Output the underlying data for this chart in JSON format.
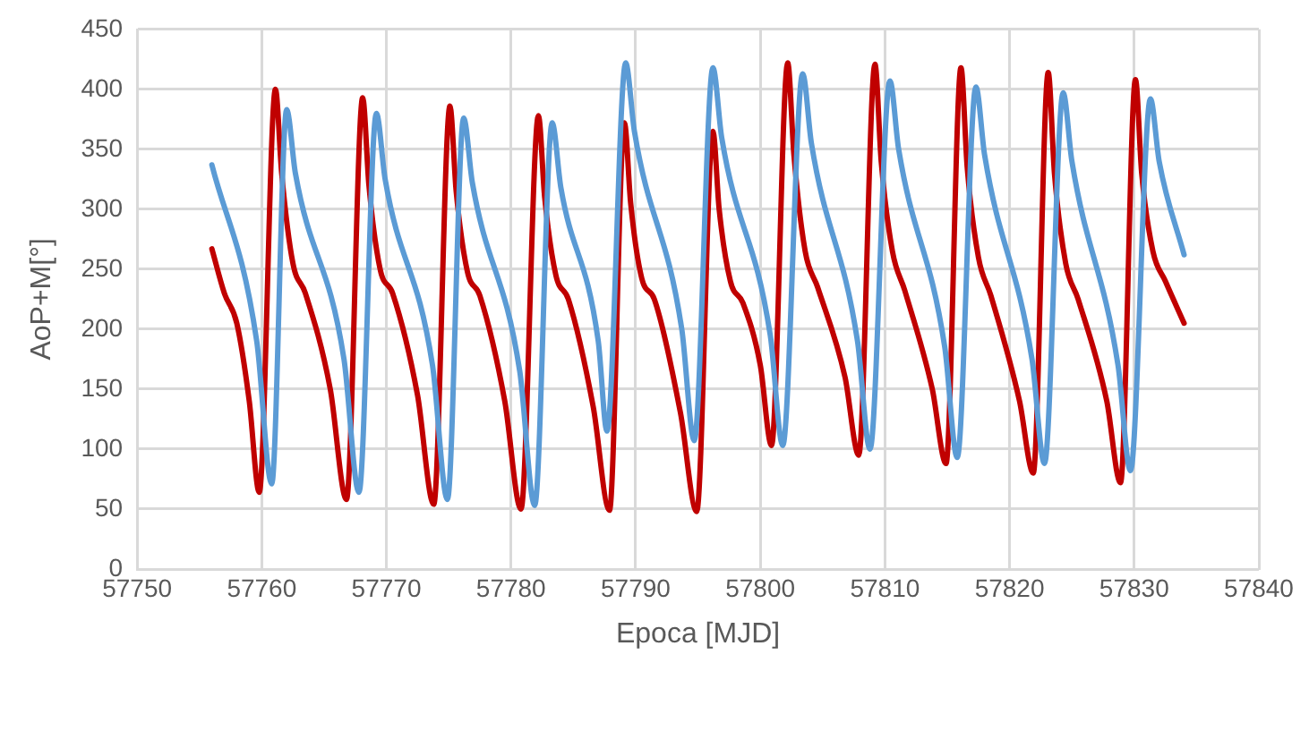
{
  "chart_data": {
    "type": "line",
    "xlabel": "Epoca [MJD]",
    "ylabel": "AoP+M[°]",
    "xlim": [
      57750,
      57840
    ],
    "xticks": [
      57750,
      57760,
      57770,
      57780,
      57790,
      57800,
      57810,
      57820,
      57830,
      57840
    ],
    "ylim": [
      0,
      450
    ],
    "yticks": [
      0,
      50,
      100,
      150,
      200,
      250,
      300,
      350,
      400,
      450
    ],
    "grid": true,
    "legend": false,
    "marker": "none",
    "line_style": "solid",
    "series": [
      {
        "color": "#5b9bd5",
        "x": [
          57756,
          57759.6,
          57760.8,
          57762.0,
          57762.7,
          57766.6,
          57767.8,
          57769.2,
          57769.9,
          57773.7,
          57774.9,
          57776.2,
          57776.9,
          57780.7,
          57781.9,
          57783.3,
          57784.0,
          57787.0,
          57787.7,
          57789.2,
          57789.9,
          57793.7,
          57794.7,
          57796.2,
          57796.9,
          57800.8,
          57801.8,
          57803.4,
          57804.1,
          57807.8,
          57808.8,
          57810.4,
          57811.1,
          57814.8,
          57815.8,
          57817.3,
          57818.0,
          57821.8,
          57822.8,
          57824.3,
          57825.0,
          57828.7,
          57829.7,
          57831.3,
          57832.0,
          57834
        ],
        "values": [
          337,
          190,
          71,
          383,
          330,
          175,
          64,
          380,
          325,
          170,
          58,
          376,
          322,
          165,
          53,
          372,
          318,
          190,
          115,
          422,
          365,
          200,
          107,
          418,
          360,
          195,
          103,
          413,
          355,
          190,
          100,
          407,
          350,
          185,
          93,
          402,
          345,
          175,
          88,
          397,
          340,
          170,
          82,
          392,
          340,
          262
        ]
      },
      {
        "color": "#c00000",
        "x": [
          57756,
          57757,
          57758,
          57759,
          57759.8,
          57761.1,
          57761.6,
          57762.5,
          57763.5,
          57765.5,
          57766.8,
          57768.1,
          57768.6,
          57769.5,
          57770.5,
          57772.5,
          57773.8,
          57775.1,
          57775.6,
          57776.5,
          57777.5,
          57779.5,
          57780.8,
          57782.2,
          57782.7,
          57783.6,
          57784.6,
          57786.6,
          57787.9,
          57789.1,
          57789.6,
          57790.5,
          57791.5,
          57793.6,
          57794.9,
          57796.2,
          57796.7,
          57797.6,
          57798.6,
          57800.0,
          57800.9,
          57802.2,
          57802.7,
          57803.6,
          57804.6,
          57806.8,
          57807.9,
          57809.2,
          57809.7,
          57810.6,
          57811.6,
          57813.8,
          57814.9,
          57816.1,
          57816.6,
          57817.5,
          57818.5,
          57820.8,
          57821.9,
          57823.1,
          57823.6,
          57824.5,
          57825.5,
          57827.8,
          57828.9,
          57830.1,
          57830.6,
          57831.5,
          57832.5,
          57834
        ],
        "values": [
          267,
          230,
          205,
          140,
          64,
          400,
          330,
          255,
          230,
          150,
          58,
          393,
          320,
          250,
          230,
          145,
          54,
          386,
          315,
          248,
          228,
          140,
          50,
          378,
          310,
          245,
          225,
          135,
          49,
          372,
          305,
          242,
          225,
          130,
          48,
          365,
          300,
          240,
          222,
          170,
          103,
          422,
          345,
          265,
          235,
          160,
          95,
          421,
          340,
          265,
          232,
          150,
          88,
          418,
          335,
          260,
          228,
          140,
          80,
          414,
          330,
          255,
          225,
          140,
          72,
          408,
          330,
          265,
          240,
          205
        ]
      }
    ]
  }
}
